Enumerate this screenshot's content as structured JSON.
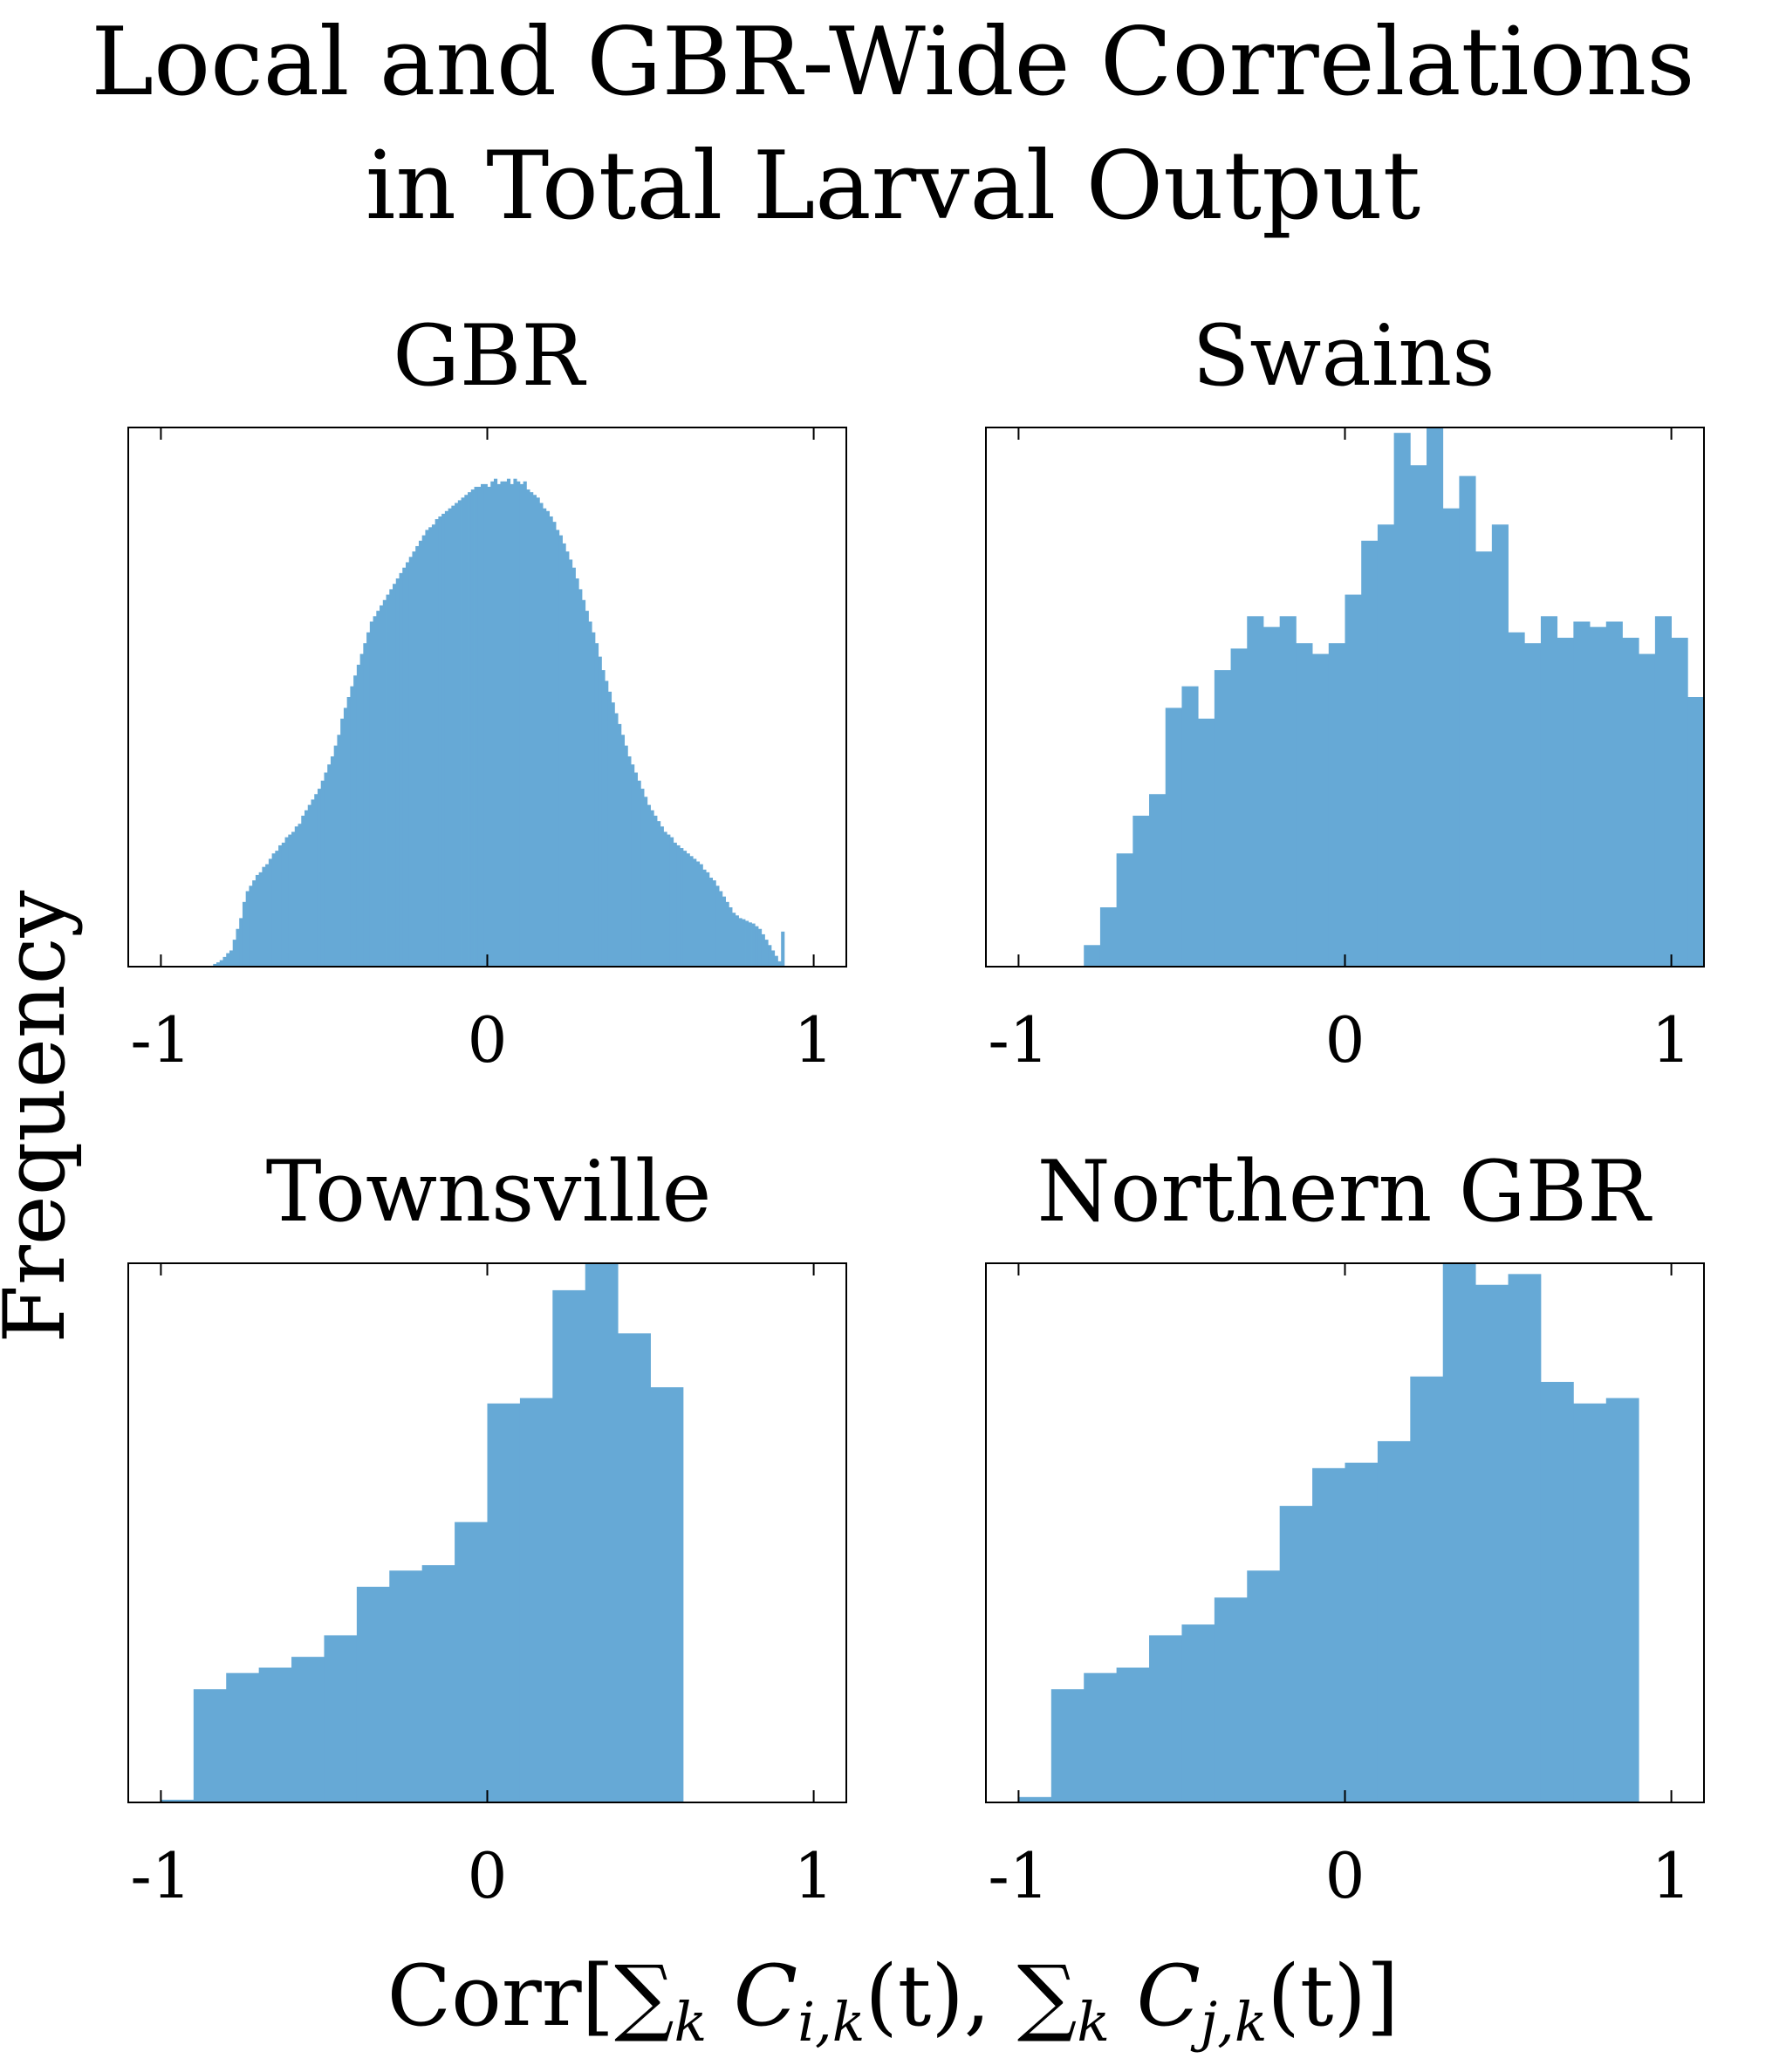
{
  "title_line1": "Local and GBR-Wide Correlations",
  "title_line2": "in Total Larval Output",
  "ylabel": "Frequency",
  "xlabel_parts": {
    "prefix": "Corr[",
    "sum1": "∑",
    "sub1": "k",
    "term1": "C",
    "sub_ij1": "i,k",
    "arg1": "(t),",
    "sum2": "∑",
    "sub2": "k",
    "term2": "C",
    "sub_ij2": "j,k",
    "arg2": "(t)]"
  },
  "tick_labels": [
    "-1",
    "0",
    "1"
  ],
  "colors": {
    "bar": "#66a9d6",
    "axes": "#000000"
  },
  "chart_data": [
    {
      "type": "bar",
      "title": "GBR",
      "xlim": [
        -1.1,
        1.1
      ],
      "xticks": [
        -1,
        0,
        1
      ],
      "ylim": [
        0,
        1
      ],
      "bin_edges_start": -0.85,
      "bin_width": 0.01,
      "values": [
        0.0,
        0.005,
        0.008,
        0.012,
        0.018,
        0.025,
        0.03,
        0.05,
        0.07,
        0.09,
        0.12,
        0.14,
        0.15,
        0.16,
        0.17,
        0.175,
        0.185,
        0.19,
        0.2,
        0.21,
        0.215,
        0.225,
        0.23,
        0.24,
        0.245,
        0.25,
        0.26,
        0.265,
        0.28,
        0.29,
        0.3,
        0.31,
        0.32,
        0.33,
        0.345,
        0.36,
        0.375,
        0.39,
        0.41,
        0.43,
        0.46,
        0.48,
        0.5,
        0.52,
        0.54,
        0.56,
        0.58,
        0.6,
        0.62,
        0.64,
        0.65,
        0.66,
        0.67,
        0.68,
        0.69,
        0.7,
        0.71,
        0.72,
        0.73,
        0.74,
        0.75,
        0.76,
        0.77,
        0.78,
        0.79,
        0.8,
        0.81,
        0.815,
        0.82,
        0.83,
        0.835,
        0.84,
        0.845,
        0.85,
        0.855,
        0.86,
        0.865,
        0.87,
        0.875,
        0.88,
        0.885,
        0.89,
        0.89,
        0.895,
        0.895,
        0.89,
        0.9,
        0.905,
        0.895,
        0.9,
        0.9,
        0.905,
        0.895,
        0.905,
        0.9,
        0.895,
        0.9,
        0.885,
        0.88,
        0.875,
        0.87,
        0.86,
        0.85,
        0.845,
        0.835,
        0.825,
        0.81,
        0.8,
        0.785,
        0.77,
        0.755,
        0.74,
        0.72,
        0.7,
        0.68,
        0.66,
        0.64,
        0.62,
        0.6,
        0.575,
        0.55,
        0.53,
        0.51,
        0.49,
        0.47,
        0.45,
        0.43,
        0.41,
        0.39,
        0.375,
        0.36,
        0.345,
        0.33,
        0.315,
        0.3,
        0.29,
        0.28,
        0.27,
        0.26,
        0.25,
        0.245,
        0.24,
        0.23,
        0.225,
        0.22,
        0.215,
        0.21,
        0.205,
        0.2,
        0.195,
        0.19,
        0.18,
        0.175,
        0.165,
        0.16,
        0.15,
        0.14,
        0.13,
        0.12,
        0.11,
        0.1,
        0.095,
        0.09,
        0.088,
        0.085,
        0.082,
        0.08,
        0.075,
        0.07,
        0.06,
        0.05,
        0.04,
        0.03,
        0.02,
        0.01,
        0.065
      ]
    },
    {
      "type": "bar",
      "title": "Swains",
      "xlim": [
        -1.1,
        1.1
      ],
      "xticks": [
        -1,
        0,
        1
      ],
      "ylim": [
        0,
        1
      ],
      "bin_edges_start": -0.8,
      "bin_width": 0.05,
      "values": [
        0.04,
        0.11,
        0.21,
        0.28,
        0.32,
        0.48,
        0.52,
        0.46,
        0.55,
        0.59,
        0.65,
        0.63,
        0.65,
        0.6,
        0.58,
        0.6,
        0.69,
        0.79,
        0.82,
        0.99,
        0.93,
        1.0,
        0.85,
        0.91,
        0.77,
        0.82,
        0.62,
        0.6,
        0.65,
        0.61,
        0.64,
        0.63,
        0.64,
        0.61,
        0.58,
        0.65,
        0.61,
        0.5
      ]
    },
    {
      "type": "bar",
      "title": "Townsville",
      "xlim": [
        -1.1,
        1.1
      ],
      "xticks": [
        -1,
        0,
        1
      ],
      "ylim": [
        0,
        1
      ],
      "bin_edges_start": -1.0,
      "bin_width": 0.1,
      "values": [
        0.005,
        0.21,
        0.24,
        0.25,
        0.27,
        0.31,
        0.4,
        0.43,
        0.44,
        0.52,
        0.74,
        0.75,
        0.95,
        1.0,
        0.87,
        0.77
      ]
    },
    {
      "type": "bar",
      "title": "Northern GBR",
      "xlim": [
        -1.1,
        1.1
      ],
      "xticks": [
        -1,
        0,
        1
      ],
      "ylim": [
        0,
        1
      ],
      "bin_edges_start": -1.0,
      "bin_width": 0.1,
      "values": [
        0.01,
        0.21,
        0.24,
        0.25,
        0.31,
        0.33,
        0.38,
        0.43,
        0.55,
        0.62,
        0.63,
        0.67,
        0.79,
        1.0,
        0.96,
        0.98,
        0.78,
        0.74,
        0.75
      ]
    }
  ]
}
